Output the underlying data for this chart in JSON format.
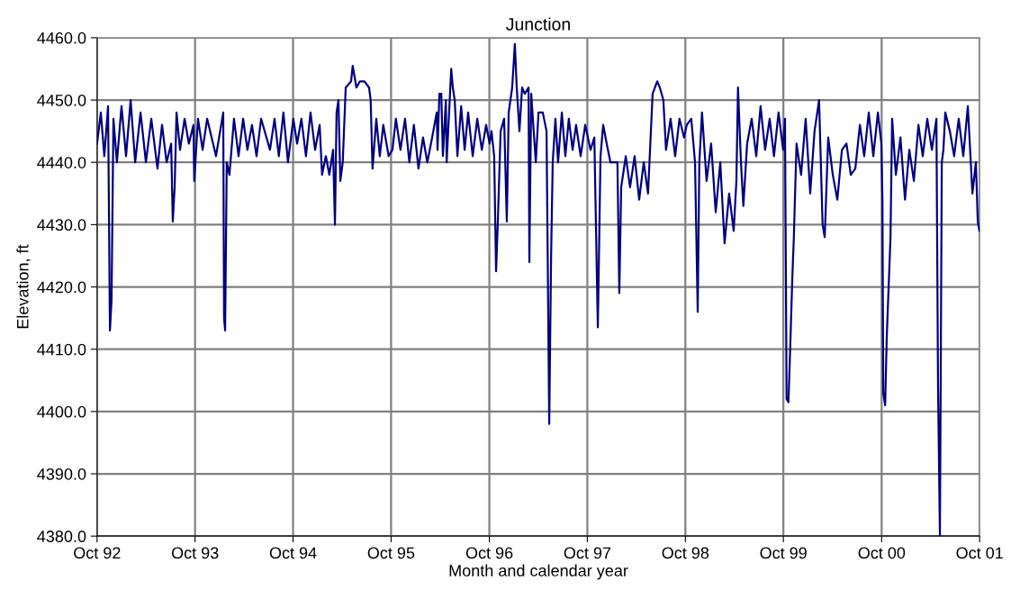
{
  "chart_data": {
    "type": "line",
    "title": "Junction",
    "xlabel": "Month and calendar year",
    "ylabel": "Elevation, ft",
    "xlim": [
      "1992-10-01",
      "2001-10-01"
    ],
    "xticks": [
      {
        "value": "1992-10-01",
        "label": "Oct 92"
      },
      {
        "value": "1993-10-01",
        "label": "Oct 93"
      },
      {
        "value": "1994-10-01",
        "label": "Oct 94"
      },
      {
        "value": "1995-10-01",
        "label": "Oct 95"
      },
      {
        "value": "1996-10-01",
        "label": "Oct 96"
      },
      {
        "value": "1997-10-01",
        "label": "Oct 97"
      },
      {
        "value": "1998-10-01",
        "label": "Oct 98"
      },
      {
        "value": "1999-10-01",
        "label": "Oct 99"
      },
      {
        "value": "2000-10-01",
        "label": "Oct 00"
      },
      {
        "value": "2001-10-01",
        "label": "Oct 01"
      }
    ],
    "ylim": [
      4380,
      4460
    ],
    "yticks": [
      {
        "value": 4380,
        "label": "4380.0"
      },
      {
        "value": 4390,
        "label": "4390.0"
      },
      {
        "value": 4400,
        "label": "4400.0"
      },
      {
        "value": 4410,
        "label": "4410.0"
      },
      {
        "value": 4420,
        "label": "4420.0"
      },
      {
        "value": 4430,
        "label": "4430.0"
      },
      {
        "value": 4440,
        "label": "4440.0"
      },
      {
        "value": 4450,
        "label": "4450.0"
      },
      {
        "value": 4460,
        "label": "4460.0"
      }
    ],
    "grid": true,
    "marker": "none",
    "line_style": "solid",
    "series": [
      {
        "color": "#000080",
        "x": [
          "1992-10-01",
          "1992-10-15",
          "1992-10-28",
          "1992-11-11",
          "1992-11-18",
          "1992-11-24",
          "1992-12-01",
          "1992-12-14",
          "1992-12-31",
          "1993-01-17",
          "1993-02-03",
          "1993-02-20",
          "1993-03-12",
          "1993-04-01",
          "1993-04-21",
          "1993-05-14",
          "1993-05-31",
          "1993-06-17",
          "1993-07-04",
          "1993-07-10",
          "1993-07-17",
          "1993-07-24",
          "1993-08-06",
          "1993-08-23",
          "1993-09-08",
          "1993-09-25",
          "1993-09-28",
          "1993-10-12",
          "1993-10-29",
          "1993-11-15",
          "1993-12-18",
          "1994-01-14",
          "1994-01-17",
          "1994-01-21",
          "1994-01-27",
          "1994-02-06",
          "1994-02-23",
          "1994-03-12",
          "1994-03-29",
          "1994-04-14",
          "1994-05-01",
          "1994-05-18",
          "1994-06-04",
          "1994-07-07",
          "1994-07-24",
          "1994-08-09",
          "1994-08-26",
          "1994-09-12",
          "1994-10-02",
          "1994-10-16",
          "1994-11-01",
          "1994-11-18",
          "1994-12-05",
          "1994-12-22",
          "1995-01-08",
          "1995-01-17",
          "1995-01-31",
          "1995-02-13",
          "1995-02-27",
          "1995-03-06",
          "1995-03-12",
          "1995-03-19",
          "1995-03-26",
          "1995-04-04",
          "1995-04-15",
          "1995-05-05",
          "1995-05-11",
          "1995-05-25",
          "1995-06-07",
          "1995-06-24",
          "1995-07-11",
          "1995-07-17",
          "1995-07-24",
          "1995-08-07",
          "1995-08-20",
          "1995-09-02",
          "1995-09-22",
          "1995-10-06",
          "1995-10-19",
          "1995-11-05",
          "1995-11-22",
          "1995-12-08",
          "1995-12-25",
          "1996-01-11",
          "1996-01-28",
          "1996-02-13",
          "1996-03-02",
          "1996-03-19",
          "1996-03-22",
          "1996-03-29",
          "1996-04-05",
          "1996-04-11",
          "1996-04-22",
          "1996-04-25",
          "1996-05-12",
          "1996-05-18",
          "1996-05-25",
          "1996-06-04",
          "1996-06-18",
          "1996-07-01",
          "1996-07-14",
          "1996-07-31",
          "1996-08-17",
          "1996-09-03",
          "1996-09-19",
          "1996-10-02",
          "1996-10-09",
          "1996-10-19",
          "1996-10-26",
          "1996-11-02",
          "1996-11-12",
          "1996-11-25",
          "1996-12-05",
          "1996-12-12",
          "1996-12-25",
          "1997-01-04",
          "1997-01-11",
          "1997-01-21",
          "1997-01-31",
          "1997-02-10",
          "1997-02-24",
          "1997-02-27",
          "1997-03-06",
          "1997-03-12",
          "1997-03-23",
          "1997-04-02",
          "1997-04-18",
          "1997-05-02",
          "1997-05-12",
          "1997-05-19",
          "1997-05-25",
          "1997-06-04",
          "1997-06-14",
          "1997-06-28",
          "1997-07-11",
          "1997-07-24",
          "1997-08-07",
          "1997-08-20",
          "1997-09-06",
          "1997-09-23",
          "1997-10-13",
          "1997-10-27",
          "1997-11-09",
          "1997-11-19",
          "1997-11-29",
          "1997-12-12",
          "1997-12-26",
          "1998-01-21",
          "1998-01-28",
          "1998-02-04",
          "1998-02-21",
          "1998-03-09",
          "1998-03-26",
          "1998-04-12",
          "1998-04-29",
          "1998-05-15",
          "1998-06-01",
          "1998-06-18",
          "1998-06-28",
          "1998-07-11",
          "1998-07-21",
          "1998-08-07",
          "1998-08-24",
          "1998-09-09",
          "1998-09-26",
          "1998-10-06",
          "1998-10-23",
          "1998-11-06",
          "1998-11-16",
          "1998-11-22",
          "1998-12-02",
          "1998-12-19",
          "1999-01-05",
          "1999-01-22",
          "1999-02-08",
          "1999-02-24",
          "1999-03-13",
          "1999-03-30",
          "1999-04-09",
          "1999-04-15",
          "1999-04-26",
          "1999-05-05",
          "1999-05-19",
          "1999-06-05",
          "1999-06-22",
          "1999-07-08",
          "1999-07-25",
          "1999-08-11",
          "1999-08-27",
          "1999-09-13",
          "1999-09-30",
          "1999-10-07",
          "1999-10-13",
          "1999-10-20",
          "1999-10-27",
          "1999-11-03",
          "1999-11-09",
          "1999-11-19",
          "1999-12-06",
          "1999-12-23",
          "2000-01-09",
          "2000-01-25",
          "2000-02-11",
          "2000-02-24",
          "2000-03-03",
          "2000-03-16",
          "2000-04-02",
          "2000-04-19",
          "2000-05-06",
          "2000-05-23",
          "2000-06-08",
          "2000-06-25",
          "2000-07-12",
          "2000-07-28",
          "2000-08-14",
          "2000-08-31",
          "2000-09-17",
          "2000-09-30",
          "2000-10-04",
          "2000-10-07",
          "2000-10-14",
          "2000-10-20",
          "2000-10-27",
          "2000-11-03",
          "2000-11-09",
          "2000-11-23",
          "2000-12-10",
          "2000-12-27",
          "2001-01-12",
          "2001-01-29",
          "2001-02-15",
          "2001-03-03",
          "2001-03-20",
          "2001-04-06",
          "2001-04-23",
          "2001-04-29",
          "2001-05-06",
          "2001-05-13",
          "2001-05-19",
          "2001-05-26",
          "2001-06-12",
          "2001-06-28",
          "2001-07-15",
          "2001-08-01",
          "2001-08-18",
          "2001-09-04",
          "2001-09-17",
          "2001-09-24",
          "2001-09-30"
        ],
        "values": [
          4443,
          4448,
          4441,
          4449,
          4413,
          4418,
          4447,
          4440,
          4449,
          4441,
          4450,
          4440,
          4448,
          4440,
          4447,
          4439,
          4446,
          4440,
          4443,
          4430.5,
          4436,
          4448,
          4442,
          4447,
          4443,
          4446,
          4437,
          4447,
          4442,
          4447,
          4441,
          4448,
          4415,
          4413,
          4440,
          4438,
          4447,
          4441,
          4447,
          4442,
          4446,
          4441,
          4447,
          4442,
          4447,
          4441,
          4448,
          4440,
          4447,
          4443,
          4447,
          4441,
          4448,
          4442,
          4446,
          4438,
          4441,
          4438,
          4442,
          4430,
          4448,
          4450,
          4437,
          4440,
          4452,
          4453,
          4455.5,
          4452,
          4453,
          4453,
          4452,
          4450,
          4439,
          4447,
          4441,
          4446,
          4441,
          4442,
          4447,
          4442,
          4447,
          4440,
          4446,
          4439,
          4444,
          4440,
          4444,
          4448,
          4442,
          4451,
          4451,
          4441,
          4450,
          4440,
          4455,
          4452,
          4450,
          4441,
          4449,
          4442,
          4448,
          4441,
          4447,
          4442,
          4446,
          4443,
          4445,
          4441,
          4422.5,
          4431,
          4445,
          4447,
          4430.5,
          4448,
          4452,
          4459,
          4452,
          4445,
          4452,
          4451,
          4452,
          4424,
          4451,
          4447,
          4440,
          4448,
          4448,
          4445,
          4398,
          4425,
          4440,
          4447,
          4440,
          4448,
          4441,
          4447,
          4442,
          4446,
          4441,
          4446,
          4442,
          4444,
          4413.5,
          4441,
          4446,
          4443,
          4440,
          4440,
          4419,
          4436,
          4441,
          4436,
          4441,
          4434,
          4440,
          4435,
          4451,
          4453,
          4452,
          4450,
          4442,
          4447,
          4441,
          4447,
          4444,
          4446,
          4447,
          4440,
          4416,
          4440,
          4448,
          4437,
          4443,
          4432,
          4440,
          4427,
          4435,
          4429,
          4437,
          4452,
          4440,
          4433,
          4443,
          4447,
          4441,
          4449,
          4442,
          4447,
          4441,
          4448,
          4442,
          4447,
          4402,
          4401.5,
          4411,
          4421,
          4428,
          4443,
          4438,
          4447,
          4435,
          4445,
          4450,
          4430,
          4428,
          4444,
          4438,
          4434,
          4442,
          4443,
          4438,
          4439,
          4446,
          4441,
          4448,
          4441,
          4448,
          4443,
          4434,
          4403,
          4401,
          4412,
          4420,
          4428,
          4447,
          4438,
          4444,
          4434,
          4442,
          4437,
          4446,
          4441,
          4447,
          4442,
          4447,
          4404,
          4380,
          4440,
          4442,
          4448,
          4445,
          4441,
          4447,
          4441,
          4449,
          4435,
          4440,
          4430.5,
          4429
        ]
      }
    ]
  }
}
